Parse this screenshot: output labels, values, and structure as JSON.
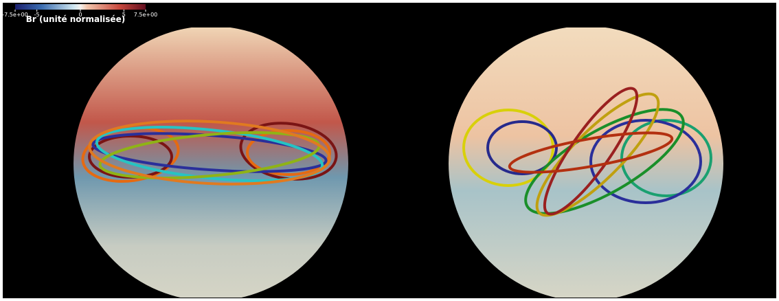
{
  "colorbar": {
    "title": "Br (unité normalisée)",
    "range": [
      -7.5,
      7.5
    ],
    "ticks": [
      {
        "value": -7.5,
        "label": "-7.5e+00"
      },
      -5,
      0,
      5,
      {
        "value": 7.5,
        "label": "7.5e+00"
      }
    ]
  }
}
